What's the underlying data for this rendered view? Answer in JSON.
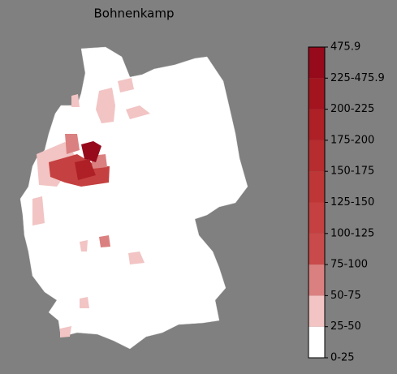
{
  "title": "Bohnenkamp",
  "legend": {
    "labels": [
      "0-25",
      "25-50",
      "50-75",
      "75-100",
      "100-125",
      "125-150",
      "150-175",
      "175-200",
      "200-225",
      "225-475.9",
      "475.9"
    ],
    "colors": [
      "#ffffff",
      "#f2c4c4",
      "#db8080",
      "#c94a4a",
      "#c54040",
      "#be3636",
      "#b72c2e",
      "#ae2026",
      "#a3141f",
      "#960a1c"
    ]
  }
}
